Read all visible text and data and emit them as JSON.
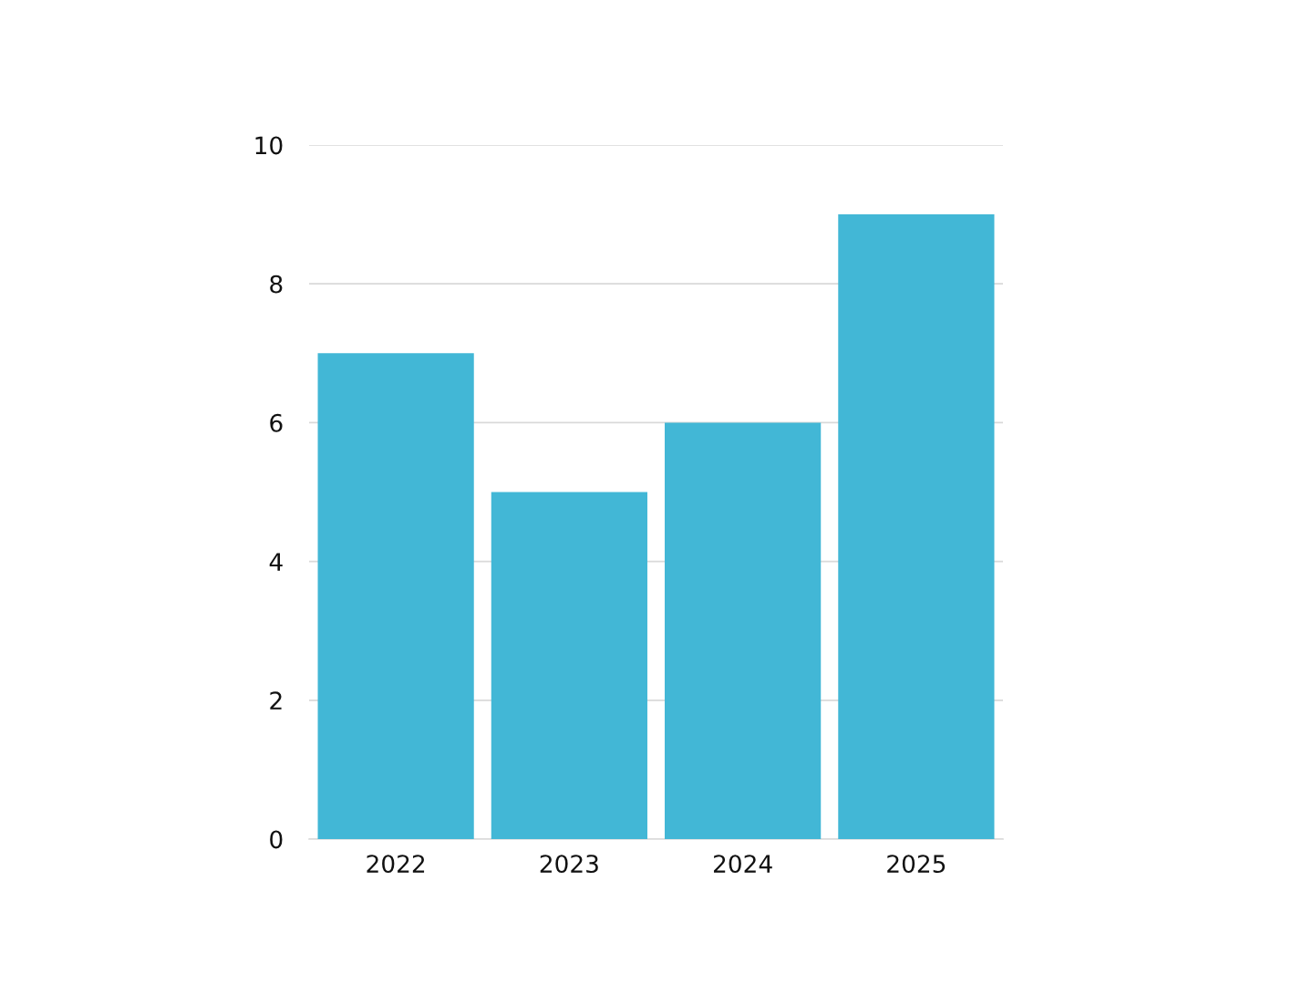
{
  "chart_data": {
    "type": "bar",
    "categories": [
      "2022",
      "2023",
      "2024",
      "2025"
    ],
    "values": [
      7,
      5,
      6,
      9
    ],
    "color": "#42b7d6",
    "ylim": [
      0,
      10
    ],
    "yticks": [
      0,
      2,
      4,
      6,
      8,
      10
    ],
    "grid": "y"
  }
}
